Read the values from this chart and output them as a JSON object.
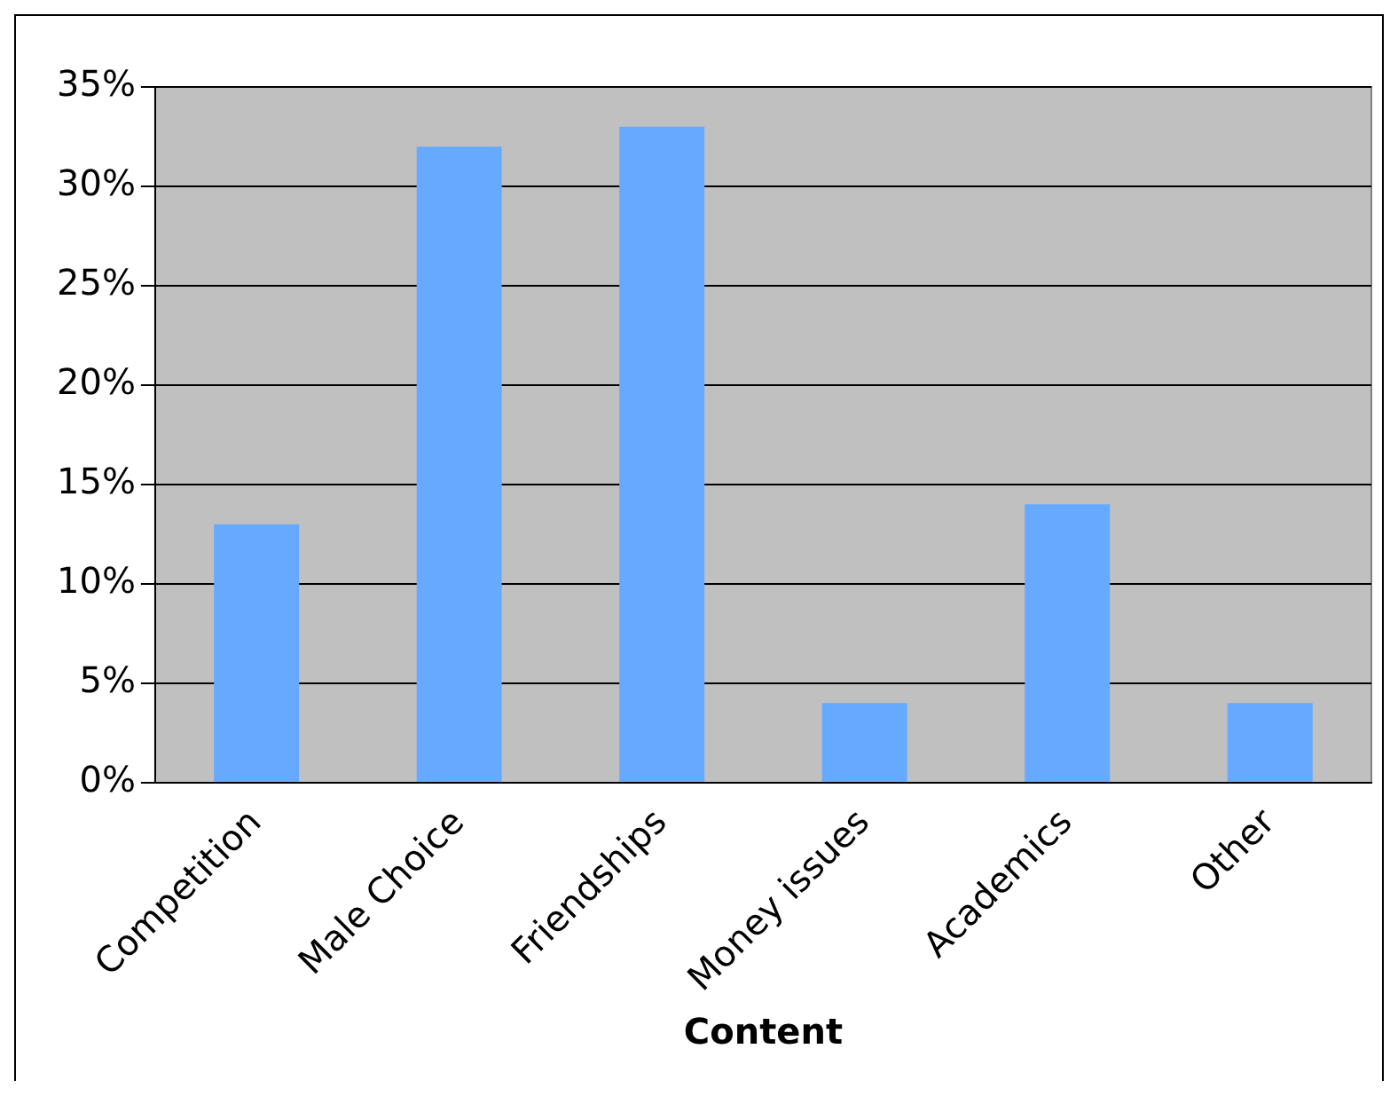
{
  "chart_data": {
    "type": "bar",
    "xlabel": "Content",
    "categories": [
      "Competition",
      "Male Choice",
      "Friendships",
      "Money issues",
      "Academics",
      "Other"
    ],
    "values": [
      13,
      32,
      33,
      4,
      14,
      4
    ],
    "color": "#66aaff",
    "ylim": [
      0,
      35
    ],
    "yticks": [
      {
        "value": 0,
        "label": "0%"
      },
      {
        "value": 5,
        "label": "5%"
      },
      {
        "value": 10,
        "label": "10%"
      },
      {
        "value": 15,
        "label": "15%"
      },
      {
        "value": 20,
        "label": "20%"
      },
      {
        "value": 25,
        "label": "25%"
      },
      {
        "value": 30,
        "label": "30%"
      },
      {
        "value": 35,
        "label": "35%"
      }
    ],
    "grid": "y",
    "legend": false
  }
}
